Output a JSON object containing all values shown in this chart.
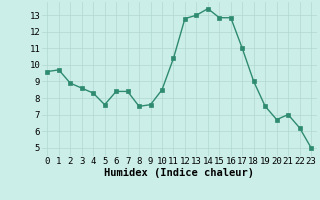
{
  "x": [
    0,
    1,
    2,
    3,
    4,
    5,
    6,
    7,
    8,
    9,
    10,
    11,
    12,
    13,
    14,
    15,
    16,
    17,
    18,
    19,
    20,
    21,
    22,
    23
  ],
  "y": [
    9.6,
    9.7,
    8.9,
    8.6,
    8.3,
    7.6,
    8.4,
    8.4,
    7.5,
    7.6,
    8.5,
    10.4,
    12.8,
    13.0,
    13.4,
    12.85,
    12.85,
    11.0,
    9.0,
    7.5,
    6.7,
    7.0,
    6.2,
    5.0
  ],
  "line_color": "#2e8b70",
  "marker_color": "#2e8b70",
  "bg_color": "#cceee8",
  "grid_color": "#b0d8d0",
  "xlabel": "Humidex (Indice chaleur)",
  "ylim": [
    4.5,
    13.8
  ],
  "xlim": [
    -0.5,
    23.5
  ],
  "yticks": [
    5,
    6,
    7,
    8,
    9,
    10,
    11,
    12,
    13
  ],
  "xticks": [
    0,
    1,
    2,
    3,
    4,
    5,
    6,
    7,
    8,
    9,
    10,
    11,
    12,
    13,
    14,
    15,
    16,
    17,
    18,
    19,
    20,
    21,
    22,
    23
  ],
  "xlabel_fontsize": 7.5,
  "tick_fontsize": 6.5,
  "linewidth": 1.0,
  "markersize": 2.2
}
